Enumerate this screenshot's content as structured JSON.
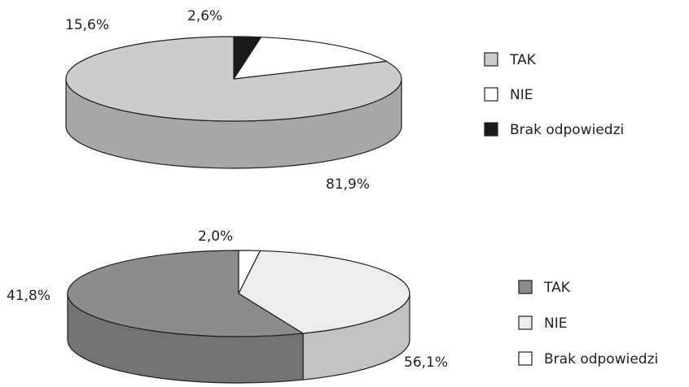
{
  "chart_data": [
    {
      "type": "pie",
      "style": "3d",
      "categories": [
        "TAK",
        "NIE",
        "Brak odpowiedzi"
      ],
      "values": [
        81.9,
        15.6,
        2.6
      ],
      "labels": [
        "81,9%",
        "15,6%",
        "2,6%"
      ],
      "colors": [
        "#cccccc",
        "#ffffff",
        "#1a1a1a"
      ],
      "legend": [
        "TAK",
        "NIE",
        "Brak odpowiedzi"
      ],
      "legend_position": "right"
    },
    {
      "type": "pie",
      "style": "3d",
      "categories": [
        "TAK",
        "NIE",
        "Brak odpowiedzi"
      ],
      "values": [
        56.1,
        41.8,
        2.0
      ],
      "labels": [
        "56,1%",
        "41,8%",
        "2,0%"
      ],
      "colors": [
        "#8c8c8c",
        "#ececec",
        "#ffffff"
      ],
      "legend": [
        "TAK",
        "NIE",
        "Brak odpowiedzi"
      ],
      "legend_position": "right"
    }
  ]
}
